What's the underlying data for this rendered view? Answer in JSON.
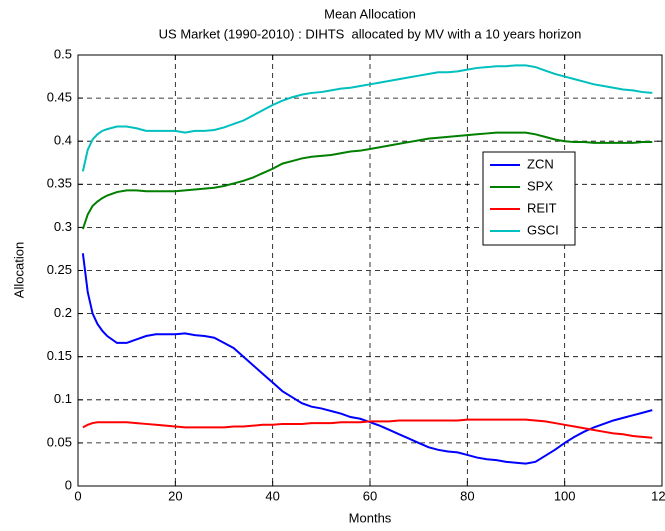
{
  "chart_data": {
    "type": "line",
    "title": "Mean Allocation",
    "subtitle": "US Market (1990-2010) : DIHTS  allocated by MV with a 10 years horizon",
    "x_label": "Months",
    "y_label": "Allocation",
    "x": [
      1,
      2,
      3,
      4,
      5,
      6,
      8,
      10,
      12,
      14,
      16,
      18,
      20,
      22,
      24,
      26,
      28,
      30,
      32,
      34,
      36,
      38,
      40,
      42,
      44,
      46,
      48,
      50,
      52,
      54,
      56,
      58,
      60,
      62,
      64,
      66,
      68,
      70,
      72,
      74,
      76,
      78,
      80,
      82,
      84,
      86,
      88,
      90,
      92,
      94,
      96,
      98,
      100,
      102,
      104,
      106,
      108,
      110,
      112,
      114,
      116,
      118
    ],
    "series": [
      {
        "name": "ZCN",
        "color": "#0000ff",
        "values": [
          0.27,
          0.225,
          0.2,
          0.188,
          0.18,
          0.174,
          0.166,
          0.166,
          0.17,
          0.174,
          0.176,
          0.176,
          0.176,
          0.177,
          0.175,
          0.174,
          0.172,
          0.166,
          0.16,
          0.15,
          0.14,
          0.13,
          0.12,
          0.11,
          0.103,
          0.096,
          0.092,
          0.09,
          0.087,
          0.084,
          0.08,
          0.078,
          0.074,
          0.07,
          0.065,
          0.06,
          0.055,
          0.05,
          0.045,
          0.042,
          0.04,
          0.039,
          0.036,
          0.033,
          0.031,
          0.03,
          0.028,
          0.027,
          0.026,
          0.028,
          0.035,
          0.042,
          0.05,
          0.057,
          0.063,
          0.068,
          0.072,
          0.076,
          0.079,
          0.082,
          0.085,
          0.088
        ]
      },
      {
        "name": "SPX",
        "color": "#007f00",
        "values": [
          0.298,
          0.315,
          0.325,
          0.33,
          0.334,
          0.337,
          0.341,
          0.343,
          0.343,
          0.342,
          0.342,
          0.342,
          0.342,
          0.343,
          0.344,
          0.345,
          0.346,
          0.348,
          0.351,
          0.354,
          0.358,
          0.363,
          0.368,
          0.374,
          0.377,
          0.38,
          0.382,
          0.383,
          0.384,
          0.386,
          0.388,
          0.389,
          0.391,
          0.393,
          0.395,
          0.397,
          0.399,
          0.401,
          0.403,
          0.404,
          0.405,
          0.406,
          0.407,
          0.408,
          0.409,
          0.41,
          0.41,
          0.41,
          0.41,
          0.408,
          0.405,
          0.402,
          0.4,
          0.399,
          0.399,
          0.398,
          0.398,
          0.398,
          0.398,
          0.398,
          0.399,
          0.399
        ]
      },
      {
        "name": "REIT",
        "color": "#ff0000",
        "values": [
          0.068,
          0.071,
          0.073,
          0.074,
          0.074,
          0.074,
          0.074,
          0.074,
          0.073,
          0.072,
          0.071,
          0.07,
          0.069,
          0.068,
          0.068,
          0.068,
          0.068,
          0.068,
          0.069,
          0.069,
          0.07,
          0.071,
          0.071,
          0.072,
          0.072,
          0.072,
          0.073,
          0.073,
          0.073,
          0.074,
          0.074,
          0.074,
          0.075,
          0.075,
          0.075,
          0.076,
          0.076,
          0.076,
          0.076,
          0.076,
          0.076,
          0.076,
          0.077,
          0.077,
          0.077,
          0.077,
          0.077,
          0.077,
          0.077,
          0.076,
          0.075,
          0.073,
          0.071,
          0.069,
          0.067,
          0.065,
          0.063,
          0.061,
          0.06,
          0.058,
          0.057,
          0.056
        ]
      },
      {
        "name": "GSCI",
        "color": "#00bfbf",
        "values": [
          0.365,
          0.39,
          0.402,
          0.408,
          0.412,
          0.414,
          0.417,
          0.417,
          0.415,
          0.412,
          0.412,
          0.412,
          0.412,
          0.41,
          0.412,
          0.412,
          0.413,
          0.416,
          0.42,
          0.424,
          0.43,
          0.436,
          0.442,
          0.447,
          0.451,
          0.454,
          0.456,
          0.457,
          0.459,
          0.461,
          0.462,
          0.464,
          0.466,
          0.468,
          0.47,
          0.472,
          0.474,
          0.476,
          0.478,
          0.48,
          0.48,
          0.481,
          0.483,
          0.485,
          0.486,
          0.487,
          0.487,
          0.488,
          0.488,
          0.486,
          0.482,
          0.478,
          0.475,
          0.472,
          0.469,
          0.466,
          0.464,
          0.462,
          0.46,
          0.459,
          0.457,
          0.456
        ]
      }
    ],
    "xlim": [
      0,
      120
    ],
    "xticks": [
      0,
      20,
      40,
      60,
      80,
      100,
      120
    ],
    "ylim": [
      0,
      0.5
    ],
    "yticks": [
      0,
      0.05,
      0.1,
      0.15,
      0.2,
      0.25,
      0.3,
      0.35,
      0.4,
      0.45,
      0.5
    ],
    "grid": true,
    "legend": "east"
  }
}
